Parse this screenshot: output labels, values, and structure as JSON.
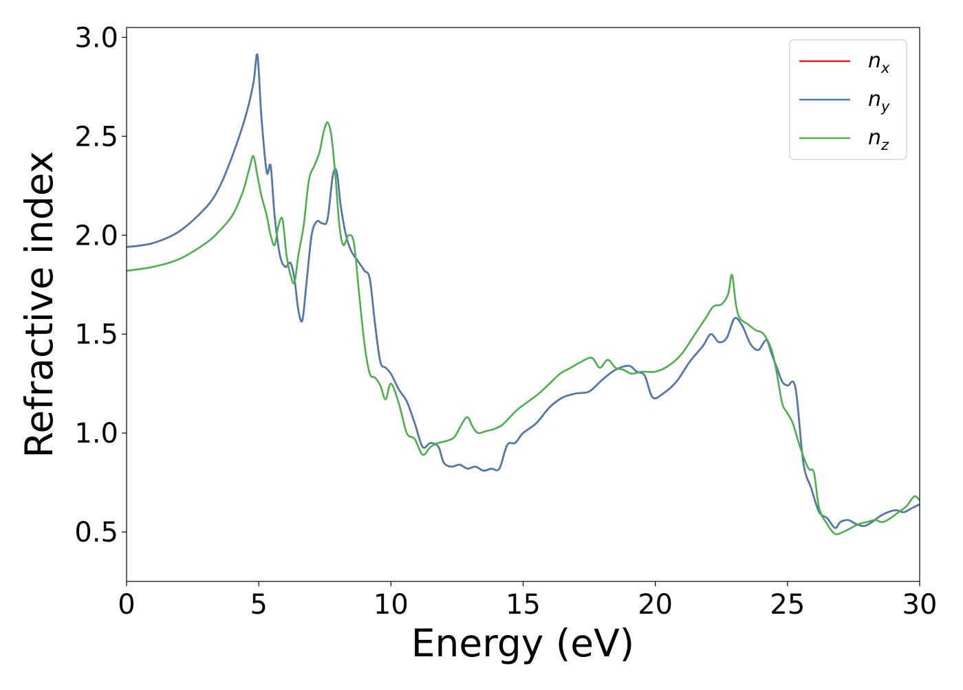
{
  "chart_data": {
    "type": "line",
    "title": "",
    "xlabel": "Energy (eV)",
    "ylabel": "Refractive index",
    "xlim": [
      0,
      30
    ],
    "ylim": [
      0.25,
      3.05
    ],
    "xticks": [
      0,
      5,
      10,
      15,
      20,
      25,
      30
    ],
    "xtick_labels": [
      "0",
      "5",
      "10",
      "15",
      "20",
      "25",
      "30"
    ],
    "yticks": [
      0.5,
      1.0,
      1.5,
      2.0,
      2.5,
      3.0
    ],
    "ytick_labels": [
      "0.5",
      "1.0",
      "1.5",
      "2.0",
      "2.5",
      "3.0"
    ],
    "grid": false,
    "legend_position": "top-right",
    "series": [
      {
        "name": "n_x",
        "legend_base": "n",
        "legend_sub": "x",
        "color": "#e41a1c",
        "x": [
          0,
          1,
          2,
          3,
          3.5,
          4,
          4.5,
          4.8,
          4.95,
          5.1,
          5.3,
          5.45,
          5.6,
          5.8,
          6.0,
          6.2,
          6.35,
          6.5,
          6.65,
          6.8,
          7.0,
          7.2,
          7.4,
          7.6,
          7.8,
          7.95,
          8.1,
          8.3,
          8.5,
          8.8,
          9.0,
          9.2,
          9.4,
          9.6,
          9.8,
          10.0,
          10.3,
          10.6,
          10.9,
          11.2,
          11.5,
          11.8,
          12.0,
          12.3,
          12.6,
          12.9,
          13.2,
          13.5,
          13.8,
          14.1,
          14.4,
          14.7,
          15.0,
          15.5,
          16.0,
          16.5,
          17.0,
          17.5,
          18.0,
          18.5,
          19.0,
          19.3,
          19.6,
          19.9,
          20.3,
          20.8,
          21.3,
          21.8,
          22.1,
          22.4,
          22.7,
          23.0,
          23.3,
          23.6,
          23.9,
          24.2,
          24.4,
          24.6,
          24.8,
          25.0,
          25.3,
          25.6,
          25.9,
          26.2,
          26.5,
          26.8,
          27.0,
          27.3,
          27.6,
          27.9,
          28.2,
          28.5,
          28.8,
          29.1,
          29.4,
          29.7,
          30.0
        ],
        "y": [
          1.94,
          1.96,
          2.02,
          2.14,
          2.24,
          2.4,
          2.6,
          2.77,
          2.91,
          2.6,
          2.32,
          2.35,
          2.1,
          1.9,
          1.84,
          1.86,
          1.78,
          1.62,
          1.57,
          1.75,
          2.0,
          2.07,
          2.06,
          2.08,
          2.3,
          2.32,
          2.15,
          2.0,
          1.92,
          1.86,
          1.82,
          1.78,
          1.55,
          1.36,
          1.33,
          1.3,
          1.22,
          1.16,
          1.05,
          0.93,
          0.95,
          0.93,
          0.85,
          0.83,
          0.84,
          0.82,
          0.83,
          0.81,
          0.82,
          0.82,
          0.94,
          0.95,
          1.0,
          1.05,
          1.13,
          1.18,
          1.2,
          1.21,
          1.27,
          1.32,
          1.34,
          1.31,
          1.29,
          1.18,
          1.2,
          1.26,
          1.36,
          1.44,
          1.5,
          1.46,
          1.48,
          1.58,
          1.54,
          1.45,
          1.42,
          1.47,
          1.4,
          1.33,
          1.26,
          1.24,
          1.23,
          0.85,
          0.72,
          0.6,
          0.57,
          0.52,
          0.55,
          0.56,
          0.54,
          0.53,
          0.55,
          0.58,
          0.6,
          0.61,
          0.6,
          0.62,
          0.64
        ]
      },
      {
        "name": "n_y",
        "legend_base": "n",
        "legend_sub": "y",
        "color": "#4a7ab0",
        "x": [
          0,
          1,
          2,
          3,
          3.5,
          4,
          4.5,
          4.8,
          4.95,
          5.1,
          5.3,
          5.45,
          5.6,
          5.8,
          6.0,
          6.2,
          6.35,
          6.5,
          6.65,
          6.8,
          7.0,
          7.2,
          7.4,
          7.6,
          7.8,
          7.95,
          8.1,
          8.3,
          8.5,
          8.8,
          9.0,
          9.2,
          9.4,
          9.6,
          9.8,
          10.0,
          10.3,
          10.6,
          10.9,
          11.2,
          11.5,
          11.8,
          12.0,
          12.3,
          12.6,
          12.9,
          13.2,
          13.5,
          13.8,
          14.1,
          14.4,
          14.7,
          15.0,
          15.5,
          16.0,
          16.5,
          17.0,
          17.5,
          18.0,
          18.5,
          19.0,
          19.3,
          19.6,
          19.9,
          20.3,
          20.8,
          21.3,
          21.8,
          22.1,
          22.4,
          22.7,
          23.0,
          23.3,
          23.6,
          23.9,
          24.2,
          24.4,
          24.6,
          24.8,
          25.0,
          25.3,
          25.6,
          25.9,
          26.2,
          26.5,
          26.8,
          27.0,
          27.3,
          27.6,
          27.9,
          28.2,
          28.5,
          28.8,
          29.1,
          29.4,
          29.7,
          30.0
        ],
        "y": [
          1.94,
          1.96,
          2.02,
          2.14,
          2.24,
          2.4,
          2.6,
          2.77,
          2.91,
          2.6,
          2.32,
          2.35,
          2.1,
          1.9,
          1.84,
          1.86,
          1.78,
          1.62,
          1.57,
          1.75,
          2.0,
          2.07,
          2.06,
          2.08,
          2.3,
          2.32,
          2.15,
          2.0,
          1.92,
          1.86,
          1.82,
          1.78,
          1.55,
          1.36,
          1.33,
          1.3,
          1.22,
          1.16,
          1.05,
          0.93,
          0.95,
          0.93,
          0.85,
          0.83,
          0.84,
          0.82,
          0.83,
          0.81,
          0.82,
          0.82,
          0.94,
          0.95,
          1.0,
          1.05,
          1.13,
          1.18,
          1.2,
          1.21,
          1.27,
          1.32,
          1.34,
          1.31,
          1.29,
          1.18,
          1.2,
          1.26,
          1.36,
          1.44,
          1.5,
          1.46,
          1.48,
          1.58,
          1.54,
          1.45,
          1.42,
          1.47,
          1.4,
          1.33,
          1.26,
          1.24,
          1.23,
          0.85,
          0.72,
          0.6,
          0.57,
          0.52,
          0.55,
          0.56,
          0.54,
          0.53,
          0.55,
          0.58,
          0.6,
          0.61,
          0.6,
          0.62,
          0.64
        ]
      },
      {
        "name": "n_z",
        "legend_base": "n",
        "legend_sub": "z",
        "color": "#4daf4a",
        "x": [
          0,
          1,
          2,
          3,
          3.5,
          4,
          4.4,
          4.65,
          4.8,
          4.95,
          5.1,
          5.3,
          5.45,
          5.6,
          5.75,
          5.9,
          6.05,
          6.2,
          6.35,
          6.5,
          6.7,
          6.9,
          7.1,
          7.3,
          7.45,
          7.6,
          7.75,
          7.9,
          8.05,
          8.2,
          8.4,
          8.6,
          8.8,
          9.0,
          9.2,
          9.4,
          9.6,
          9.8,
          10.0,
          10.3,
          10.6,
          10.9,
          11.2,
          11.5,
          11.8,
          12.1,
          12.4,
          12.7,
          12.9,
          13.1,
          13.3,
          13.6,
          13.9,
          14.2,
          14.5,
          14.8,
          15.2,
          15.6,
          16.0,
          16.4,
          16.8,
          17.2,
          17.6,
          17.9,
          18.2,
          18.5,
          18.8,
          19.1,
          19.5,
          20.0,
          20.5,
          21.0,
          21.5,
          21.9,
          22.2,
          22.5,
          22.75,
          22.9,
          23.05,
          23.2,
          23.5,
          23.8,
          24.1,
          24.4,
          24.6,
          24.8,
          25.0,
          25.2,
          25.5,
          25.8,
          26.0,
          26.2,
          26.5,
          26.8,
          27.1,
          27.4,
          27.7,
          28.0,
          28.3,
          28.6,
          28.9,
          29.2,
          29.5,
          29.8,
          30.0
        ],
        "y": [
          1.82,
          1.84,
          1.88,
          1.96,
          2.02,
          2.1,
          2.22,
          2.34,
          2.4,
          2.3,
          2.2,
          2.1,
          2.0,
          1.95,
          2.05,
          2.08,
          1.9,
          1.8,
          1.76,
          1.9,
          2.05,
          2.28,
          2.35,
          2.42,
          2.52,
          2.57,
          2.5,
          2.3,
          2.05,
          1.95,
          2.0,
          1.96,
          1.7,
          1.45,
          1.3,
          1.28,
          1.24,
          1.17,
          1.25,
          1.15,
          1.0,
          0.97,
          0.89,
          0.93,
          0.95,
          0.96,
          0.98,
          1.05,
          1.08,
          1.03,
          1.0,
          1.01,
          1.02,
          1.04,
          1.08,
          1.12,
          1.16,
          1.2,
          1.25,
          1.3,
          1.33,
          1.36,
          1.38,
          1.33,
          1.37,
          1.33,
          1.32,
          1.3,
          1.31,
          1.31,
          1.34,
          1.4,
          1.5,
          1.58,
          1.64,
          1.65,
          1.7,
          1.8,
          1.65,
          1.58,
          1.55,
          1.52,
          1.5,
          1.42,
          1.3,
          1.15,
          1.1,
          1.05,
          0.92,
          0.82,
          0.8,
          0.62,
          0.54,
          0.49,
          0.5,
          0.52,
          0.54,
          0.55,
          0.56,
          0.55,
          0.57,
          0.6,
          0.63,
          0.68,
          0.66
        ]
      }
    ]
  }
}
